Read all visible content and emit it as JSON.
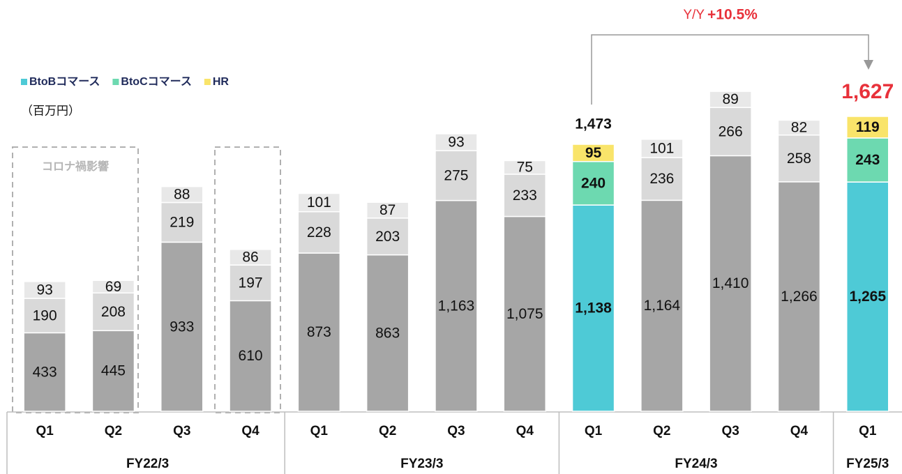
{
  "chart_data": {
    "type": "stacked_bar",
    "unit_label": "（百万円）",
    "annotation": "コロナ禍影響",
    "yoy_label": "Y/Y",
    "yoy_value": "+10.5%",
    "groups": [
      {
        "name": "FY22/3",
        "categories": [
          "Q1",
          "Q2",
          "Q3",
          "Q4"
        ]
      },
      {
        "name": "FY23/3",
        "categories": [
          "Q1",
          "Q2",
          "Q3",
          "Q4"
        ]
      },
      {
        "name": "FY24/3",
        "categories": [
          "Q1",
          "Q2",
          "Q3",
          "Q4"
        ]
      },
      {
        "name": "FY25/3",
        "categories": [
          "Q1"
        ]
      }
    ],
    "series": [
      {
        "name": "BtoBコマース",
        "color": "#4ecad6",
        "muted_color": "#a6a6a6",
        "values": [
          433,
          445,
          933,
          610,
          873,
          863,
          1163,
          1075,
          1138,
          1164,
          1410,
          1266,
          1265
        ],
        "value_labels": [
          "433",
          "445",
          "933",
          "610",
          "873",
          "863",
          "1,163",
          "1,075",
          "1,138",
          "1,164",
          "1,410",
          "1,266",
          "1,265"
        ]
      },
      {
        "name": "BtoCコマース",
        "color": "#6dd9b0",
        "muted_color": "#d9d9d9",
        "values": [
          190,
          208,
          219,
          197,
          228,
          203,
          275,
          233,
          240,
          236,
          266,
          258,
          243
        ],
        "value_labels": [
          "190",
          "208",
          "219",
          "197",
          "228",
          "203",
          "275",
          "233",
          "240",
          "236",
          "266",
          "258",
          "243"
        ]
      },
      {
        "name": "HR",
        "color": "#f9e46a",
        "muted_color": "#e8e8e8",
        "values": [
          93,
          69,
          88,
          86,
          101,
          87,
          93,
          75,
          95,
          101,
          89,
          82,
          119
        ],
        "value_labels": [
          "93",
          "69",
          "88",
          "86",
          "101",
          "87",
          "93",
          "75",
          "95",
          "101",
          "89",
          "82",
          "119"
        ]
      }
    ],
    "emphasis": [
      false,
      false,
      false,
      false,
      false,
      false,
      false,
      false,
      true,
      false,
      false,
      false,
      true
    ],
    "totals": [
      null,
      null,
      null,
      null,
      null,
      null,
      null,
      null,
      1473,
      null,
      null,
      null,
      1627
    ],
    "total_labels": [
      null,
      null,
      null,
      null,
      null,
      null,
      null,
      null,
      "1,473",
      null,
      null,
      null,
      "1,627"
    ],
    "total_colors": [
      null,
      null,
      null,
      null,
      null,
      null,
      null,
      null,
      "#111111",
      null,
      null,
      null,
      "#e8313a"
    ],
    "ylim": [
      0,
      2000
    ]
  }
}
